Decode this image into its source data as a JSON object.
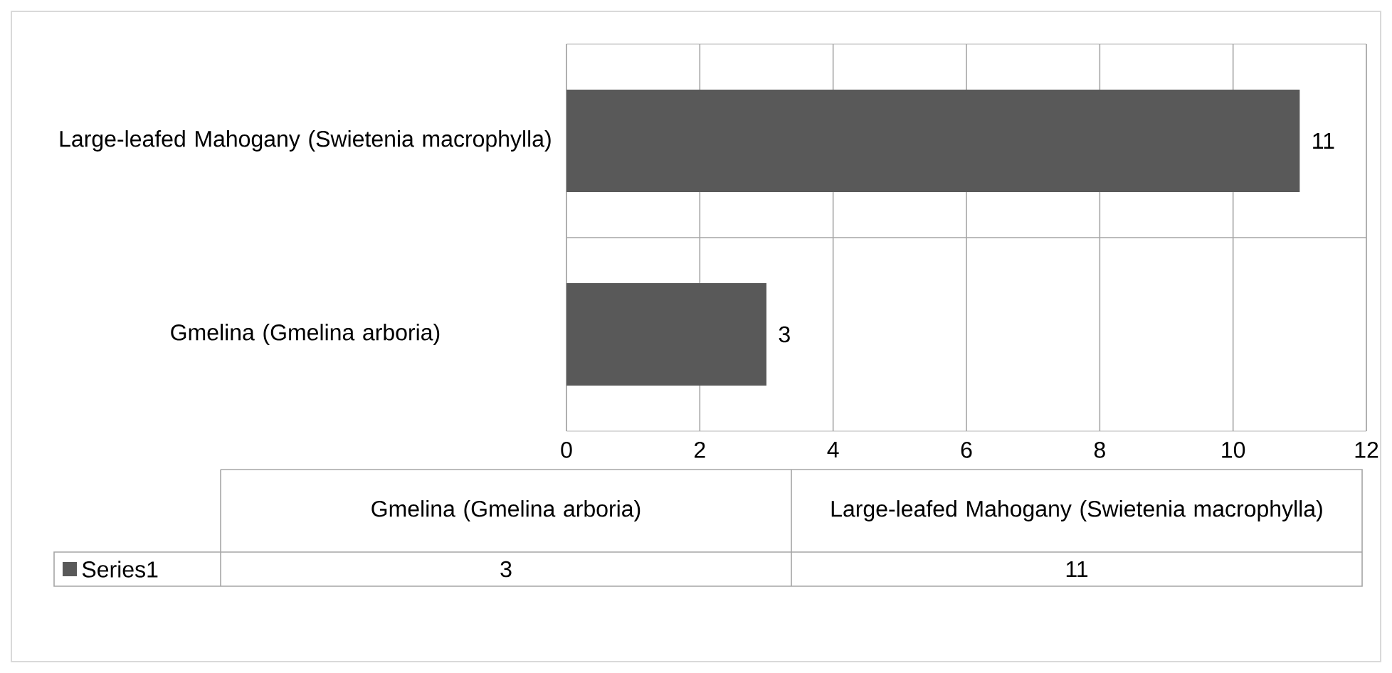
{
  "chart_data": {
    "type": "bar",
    "orientation": "horizontal",
    "categories": [
      "Large-leafed Mahogany (Swietenia macrophylla)",
      "Gmelina (Gmelina arboria)"
    ],
    "series": [
      {
        "name": "Series1",
        "color": "#595959",
        "values": [
          11,
          3
        ],
        "value_labels": [
          "11",
          "3"
        ]
      }
    ],
    "xlim": [
      0,
      12
    ],
    "xticks": [
      0,
      2,
      4,
      6,
      8,
      10,
      12
    ],
    "grid": true
  }
}
